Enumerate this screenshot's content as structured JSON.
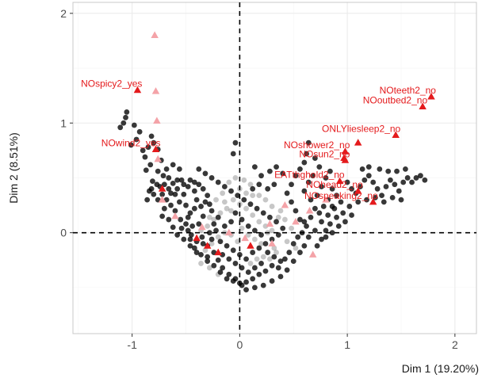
{
  "chart_data": {
    "type": "scatter",
    "xlabel": "Dim 1 (19.20%)",
    "ylabel": "Dim 2 (8.51%)",
    "xlim": [
      -1.55,
      2.2
    ],
    "ylim": [
      -0.92,
      2.1
    ],
    "xticks": [
      -1,
      0,
      1,
      2
    ],
    "yticks": [
      0,
      1,
      2
    ],
    "grid": true,
    "reference_lines": {
      "x": 0,
      "y": 0,
      "style": "dashed"
    },
    "colors": {
      "individuals": "#000000",
      "active_categories": "#e41a1c",
      "faded_categories": "#f4a3a8",
      "grid_major": "#ebebeb",
      "grid_minor": "#f5f5f5",
      "panel_border": "#c8c8c8"
    },
    "labeled_categories": [
      {
        "label": "NOspicy2_yes",
        "x": -0.95,
        "y": 1.3
      },
      {
        "label": "NOwind2_yes",
        "x": -0.78,
        "y": 0.76
      },
      {
        "label": "NOteeth2_no",
        "x": 1.78,
        "y": 1.24
      },
      {
        "label": "NOoutbed2_no",
        "x": 1.7,
        "y": 1.15
      },
      {
        "label": "ONLYliesleep2_no",
        "x": 1.45,
        "y": 0.89
      },
      {
        "label": "NOshower2_no",
        "x": 0.98,
        "y": 0.74
      },
      {
        "label": "NOsun2_no",
        "x": 0.98,
        "y": 0.66
      },
      {
        "label": "EATthghold2_no",
        "x": 0.93,
        "y": 0.47
      },
      {
        "label": "NOhead2_no",
        "x": 1.1,
        "y": 0.38
      },
      {
        "label": "NOspeaking2_no",
        "x": 1.24,
        "y": 0.28
      }
    ],
    "unlabeled_active_categories": [
      {
        "x": 1.1,
        "y": 0.82
      },
      {
        "x": 0.97,
        "y": 0.68
      },
      {
        "x": -0.72,
        "y": 0.4
      },
      {
        "x": -0.4,
        "y": -0.05
      },
      {
        "x": -0.2,
        "y": -0.18
      },
      {
        "x": -0.3,
        "y": -0.12
      },
      {
        "x": 0.1,
        "y": -0.12
      }
    ],
    "faded_categories": [
      {
        "x": -0.79,
        "y": 1.8
      },
      {
        "x": -0.78,
        "y": 1.29
      },
      {
        "x": -0.77,
        "y": 1.02
      },
      {
        "x": -0.76,
        "y": 0.67
      },
      {
        "x": -0.72,
        "y": 0.3
      },
      {
        "x": -0.35,
        "y": 0.05
      },
      {
        "x": 0.28,
        "y": 0.08
      },
      {
        "x": 0.42,
        "y": 0.25
      },
      {
        "x": 0.52,
        "y": 0.1
      },
      {
        "x": 0.65,
        "y": 0.2
      },
      {
        "x": 0.68,
        "y": -0.2
      },
      {
        "x": 0.3,
        "y": -0.1
      },
      {
        "x": 0.05,
        "y": -0.05
      },
      {
        "x": -0.1,
        "y": 0.0
      },
      {
        "x": -0.6,
        "y": 0.15
      },
      {
        "x": 0.8,
        "y": 0.3
      }
    ],
    "individuals": [
      [
        -1.11,
        0.96
      ],
      [
        -1.08,
        1.0
      ],
      [
        -1.06,
        1.05
      ],
      [
        -1.05,
        1.1
      ],
      [
        -0.98,
        0.98
      ],
      [
        -0.93,
        0.92
      ],
      [
        -1.01,
        0.8
      ],
      [
        -0.96,
        0.85
      ],
      [
        -0.9,
        0.75
      ],
      [
        -0.88,
        0.69
      ],
      [
        -0.85,
        0.78
      ],
      [
        -0.82,
        0.88
      ],
      [
        -0.8,
        0.82
      ],
      [
        -0.76,
        0.76
      ],
      [
        -0.73,
        0.66
      ],
      [
        -0.83,
        0.62
      ],
      [
        -0.87,
        0.57
      ],
      [
        -0.76,
        0.56
      ],
      [
        -0.71,
        0.52
      ],
      [
        -0.81,
        0.47
      ],
      [
        -0.77,
        0.44
      ],
      [
        -0.66,
        0.5
      ],
      [
        -0.62,
        0.45
      ],
      [
        -0.58,
        0.4
      ],
      [
        -0.82,
        0.4
      ],
      [
        -0.8,
        0.35
      ],
      [
        -0.76,
        0.3
      ],
      [
        -0.72,
        0.35
      ],
      [
        -0.68,
        0.3
      ],
      [
        -0.7,
        0.22
      ],
      [
        -0.64,
        0.25
      ],
      [
        -0.6,
        0.2
      ],
      [
        -0.56,
        0.28
      ],
      [
        -0.52,
        0.35
      ],
      [
        -0.5,
        0.25
      ],
      [
        -0.46,
        0.18
      ],
      [
        -0.55,
        0.12
      ],
      [
        -0.5,
        0.08
      ],
      [
        -0.44,
        0.06
      ],
      [
        -0.62,
        0.05
      ],
      [
        -0.66,
        0.12
      ],
      [
        -0.72,
        0.15
      ],
      [
        -0.84,
        0.38
      ],
      [
        -0.86,
        0.3
      ],
      [
        -0.74,
        0.42
      ],
      [
        -0.6,
        0.35
      ],
      [
        -0.54,
        0.48
      ],
      [
        -0.48,
        0.42
      ],
      [
        -0.42,
        0.38
      ],
      [
        -0.4,
        0.3
      ],
      [
        -0.36,
        0.24
      ],
      [
        -0.34,
        0.15
      ],
      [
        -0.38,
        0.08
      ],
      [
        -0.45,
        -0.02
      ],
      [
        -0.4,
        -0.08
      ],
      [
        -0.35,
        -0.04
      ],
      [
        -0.3,
        -0.12
      ],
      [
        -0.26,
        -0.06
      ],
      [
        -0.3,
        -0.22
      ],
      [
        -0.24,
        -0.18
      ],
      [
        -0.2,
        -0.25
      ],
      [
        -0.16,
        -0.32
      ],
      [
        -0.1,
        -0.38
      ],
      [
        -0.04,
        -0.42
      ],
      [
        0.02,
        -0.48
      ],
      [
        0.06,
        -0.45
      ],
      [
        0.12,
        -0.42
      ],
      [
        0.18,
        -0.38
      ],
      [
        0.24,
        -0.35
      ],
      [
        0.3,
        -0.3
      ],
      [
        0.36,
        -0.32
      ],
      [
        0.42,
        -0.24
      ],
      [
        0.46,
        -0.18
      ],
      [
        0.5,
        -0.1
      ],
      [
        0.54,
        -0.04
      ],
      [
        0.58,
        0.0
      ],
      [
        0.62,
        0.06
      ],
      [
        0.56,
        0.12
      ],
      [
        0.52,
        0.2
      ],
      [
        0.48,
        0.28
      ],
      [
        0.44,
        0.36
      ],
      [
        0.48,
        0.44
      ],
      [
        0.52,
        0.52
      ],
      [
        0.56,
        0.58
      ],
      [
        0.6,
        0.64
      ],
      [
        0.62,
        0.72
      ],
      [
        0.64,
        0.82
      ],
      [
        0.7,
        0.68
      ],
      [
        0.74,
        0.6
      ],
      [
        0.68,
        0.52
      ],
      [
        0.64,
        0.46
      ],
      [
        0.6,
        0.38
      ],
      [
        0.66,
        0.3
      ],
      [
        0.72,
        0.34
      ],
      [
        0.76,
        0.42
      ],
      [
        0.8,
        0.5
      ],
      [
        0.84,
        0.56
      ],
      [
        0.86,
        0.4
      ],
      [
        0.9,
        0.34
      ],
      [
        0.94,
        0.28
      ],
      [
        0.88,
        0.22
      ],
      [
        0.82,
        0.16
      ],
      [
        0.76,
        0.1
      ],
      [
        0.7,
        0.02
      ],
      [
        0.64,
        -0.04
      ],
      [
        0.6,
        -0.12
      ],
      [
        0.56,
        -0.18
      ],
      [
        0.5,
        -0.26
      ],
      [
        0.44,
        -0.34
      ],
      [
        0.38,
        -0.4
      ],
      [
        0.3,
        -0.44
      ],
      [
        0.22,
        -0.48
      ],
      [
        0.14,
        -0.5
      ],
      [
        0.06,
        -0.52
      ],
      [
        0.0,
        -0.46
      ],
      [
        -0.06,
        -0.44
      ],
      [
        -0.12,
        -0.42
      ],
      [
        -0.18,
        -0.36
      ],
      [
        -0.24,
        -0.3
      ],
      [
        -0.3,
        -0.26
      ],
      [
        -0.36,
        -0.2
      ],
      [
        -0.42,
        -0.14
      ],
      [
        -0.46,
        -0.06
      ],
      [
        -0.48,
        0.02
      ],
      [
        -0.22,
        0.02
      ],
      [
        -0.18,
        -0.08
      ],
      [
        -0.12,
        -0.12
      ],
      [
        -0.06,
        -0.16
      ],
      [
        0.0,
        -0.2
      ],
      [
        0.06,
        -0.24
      ],
      [
        0.12,
        -0.18
      ],
      [
        0.18,
        -0.14
      ],
      [
        0.24,
        -0.1
      ],
      [
        0.3,
        -0.06
      ],
      [
        0.36,
        -0.02
      ],
      [
        0.4,
        0.04
      ],
      [
        0.34,
        0.1
      ],
      [
        0.28,
        0.14
      ],
      [
        0.22,
        0.18
      ],
      [
        0.16,
        0.22
      ],
      [
        0.1,
        0.26
      ],
      [
        0.04,
        0.3
      ],
      [
        -0.02,
        0.34
      ],
      [
        -0.08,
        0.38
      ],
      [
        -0.14,
        0.42
      ],
      [
        -0.2,
        0.46
      ],
      [
        -0.26,
        0.5
      ],
      [
        -0.32,
        0.54
      ],
      [
        -0.38,
        0.58
      ],
      [
        -0.08,
        0.1
      ],
      [
        -0.14,
        0.06
      ],
      [
        -0.2,
        0.14
      ],
      [
        -0.26,
        0.2
      ],
      [
        -0.04,
        0.18
      ],
      [
        0.02,
        0.12
      ],
      [
        0.08,
        0.06
      ],
      [
        0.14,
        0.02
      ],
      [
        0.2,
        -0.02
      ],
      [
        0.26,
        -0.18
      ],
      [
        0.32,
        -0.22
      ],
      [
        0.38,
        -0.26
      ],
      [
        0.2,
        -0.28
      ],
      [
        0.14,
        -0.32
      ],
      [
        0.08,
        -0.36
      ],
      [
        0.02,
        -0.32
      ],
      [
        -0.04,
        -0.28
      ],
      [
        -0.1,
        -0.24
      ],
      [
        -0.16,
        -0.2
      ],
      [
        -0.04,
        0.82
      ],
      [
        -0.06,
        0.72
      ],
      [
        0.14,
        0.6
      ],
      [
        0.2,
        0.52
      ],
      [
        0.28,
        0.56
      ],
      [
        0.34,
        0.6
      ],
      [
        0.4,
        0.54
      ],
      [
        0.18,
        0.44
      ],
      [
        0.12,
        0.4
      ],
      [
        0.26,
        0.4
      ],
      [
        0.32,
        0.44
      ],
      [
        1.0,
        0.46
      ],
      [
        1.04,
        0.4
      ],
      [
        1.08,
        0.36
      ],
      [
        1.12,
        0.42
      ],
      [
        1.16,
        0.48
      ],
      [
        1.2,
        0.52
      ],
      [
        1.24,
        0.46
      ],
      [
        1.28,
        0.4
      ],
      [
        1.32,
        0.34
      ],
      [
        1.36,
        0.42
      ],
      [
        1.4,
        0.48
      ],
      [
        1.44,
        0.44
      ],
      [
        1.48,
        0.38
      ],
      [
        1.52,
        0.46
      ],
      [
        1.56,
        0.5
      ],
      [
        1.6,
        0.46
      ],
      [
        1.64,
        0.5
      ],
      [
        1.68,
        0.52
      ],
      [
        1.72,
        0.48
      ],
      [
        1.5,
        0.3
      ],
      [
        1.42,
        0.32
      ],
      [
        1.34,
        0.28
      ],
      [
        1.26,
        0.32
      ],
      [
        1.18,
        0.3
      ],
      [
        1.1,
        0.28
      ],
      [
        1.02,
        0.24
      ],
      [
        0.96,
        0.18
      ],
      [
        0.9,
        0.14
      ],
      [
        0.84,
        0.08
      ],
      [
        0.8,
        0.02
      ],
      [
        0.76,
        -0.06
      ],
      [
        0.72,
        -0.12
      ],
      [
        0.8,
        -0.04
      ],
      [
        0.86,
        0.0
      ],
      [
        0.92,
        0.06
      ],
      [
        0.98,
        0.1
      ],
      [
        1.04,
        0.16
      ],
      [
        1.3,
        0.58
      ],
      [
        1.38,
        0.56
      ],
      [
        1.46,
        0.56
      ],
      [
        1.54,
        0.58
      ],
      [
        1.2,
        0.6
      ],
      [
        1.14,
        0.58
      ],
      [
        -0.62,
        0.62
      ],
      [
        -0.56,
        0.58
      ],
      [
        -0.68,
        0.58
      ],
      [
        -0.7,
        0.44
      ],
      [
        -0.66,
        0.4
      ],
      [
        -0.64,
        0.36
      ],
      [
        -0.58,
        0.48
      ],
      [
        -0.52,
        0.44
      ],
      [
        -0.46,
        0.48
      ],
      [
        -0.42,
        0.46
      ],
      [
        -0.38,
        0.44
      ],
      [
        -0.34,
        0.4
      ],
      [
        -0.3,
        0.34
      ],
      [
        -0.32,
        0.28
      ],
      [
        -0.28,
        0.26
      ],
      [
        -0.42,
        0.22
      ],
      [
        -0.48,
        0.14
      ],
      [
        -0.54,
        0.04
      ],
      [
        -0.58,
        -0.02
      ],
      [
        -0.52,
        -0.06
      ],
      [
        -0.46,
        -0.12
      ],
      [
        -0.4,
        -0.18
      ],
      [
        -0.34,
        -0.1
      ],
      [
        -0.28,
        0.0
      ],
      [
        -0.24,
        0.08
      ],
      [
        0.7,
        0.22
      ],
      [
        0.74,
        0.18
      ],
      [
        0.78,
        0.24
      ],
      [
        0.82,
        0.3
      ],
      [
        0.86,
        0.24
      ],
      [
        0.66,
        0.14
      ],
      [
        0.6,
        0.1
      ]
    ],
    "faded_individuals": [
      [
        0.0,
        0.4
      ],
      [
        0.06,
        0.36
      ],
      [
        0.12,
        0.34
      ],
      [
        -0.06,
        0.3
      ],
      [
        0.0,
        0.26
      ],
      [
        0.06,
        0.22
      ],
      [
        0.12,
        0.16
      ],
      [
        0.18,
        0.1
      ],
      [
        0.24,
        0.06
      ],
      [
        0.3,
        0.02
      ],
      [
        -0.12,
        0.22
      ],
      [
        -0.18,
        0.18
      ],
      [
        -0.24,
        0.12
      ],
      [
        -0.3,
        0.06
      ],
      [
        -0.36,
        0.02
      ],
      [
        0.36,
        0.14
      ],
      [
        0.42,
        0.12
      ],
      [
        0.38,
        0.2
      ],
      [
        0.3,
        0.24
      ],
      [
        0.24,
        0.3
      ],
      [
        0.18,
        0.34
      ],
      [
        0.1,
        0.44
      ],
      [
        0.04,
        0.48
      ],
      [
        -0.04,
        0.5
      ],
      [
        -0.1,
        0.46
      ],
      [
        -0.16,
        0.36
      ],
      [
        -0.22,
        0.3
      ],
      [
        -0.28,
        0.14
      ],
      [
        -0.14,
        0.28
      ],
      [
        -0.08,
        0.2
      ],
      [
        0.02,
        0.04
      ],
      [
        0.08,
        -0.02
      ],
      [
        0.14,
        -0.06
      ],
      [
        0.2,
        -0.1
      ],
      [
        0.26,
        0.0
      ],
      [
        0.32,
        -0.14
      ],
      [
        0.44,
        -0.08
      ],
      [
        0.48,
        0.04
      ],
      [
        0.52,
        -0.14
      ],
      [
        -0.02,
        -0.08
      ],
      [
        -0.08,
        -0.02
      ],
      [
        -0.14,
        0.0
      ],
      [
        -0.2,
        -0.04
      ],
      [
        -0.26,
        -0.1
      ],
      [
        -0.32,
        -0.16
      ],
      [
        -0.36,
        -0.28
      ],
      [
        -0.28,
        -0.32
      ],
      [
        -0.2,
        -0.38
      ],
      [
        0.1,
        -0.28
      ],
      [
        0.16,
        -0.24
      ],
      [
        0.22,
        -0.22
      ],
      [
        0.28,
        -0.24
      ],
      [
        0.34,
        -0.18
      ]
    ]
  }
}
